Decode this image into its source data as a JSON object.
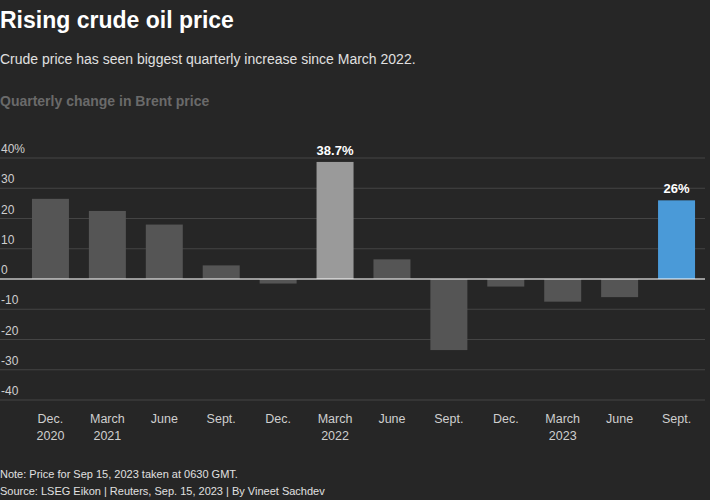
{
  "chart_data": {
    "type": "bar",
    "title": "Rising crude oil price",
    "subtitle": "Crude price has seen biggest quarterly increase since March 2022.",
    "y_label": "Quarterly change in Brent price",
    "categories": [
      "Dec.\n2020",
      "March\n2021",
      "June",
      "Sept.",
      "Dec.",
      "March\n2022",
      "June",
      "Sept.",
      "Dec.",
      "March\n2023",
      "June",
      "Sept."
    ],
    "values": [
      26.5,
      22.5,
      18,
      4.5,
      -1.5,
      38.7,
      6.5,
      -23.5,
      -2.5,
      -7.5,
      -6,
      26
    ],
    "value_labels": [
      null,
      null,
      null,
      null,
      null,
      "38.7%",
      null,
      null,
      null,
      null,
      null,
      "26%"
    ],
    "data_labels": true,
    "colors": [
      "#555555",
      "#555555",
      "#555555",
      "#555555",
      "#555555",
      "#9a9a9a",
      "#555555",
      "#555555",
      "#555555",
      "#555555",
      "#555555",
      "#4a9ad8"
    ],
    "ylim": [
      -40,
      40
    ],
    "yticks": [
      {
        "value": 40,
        "label": "40%"
      },
      30,
      20,
      10,
      0,
      -10,
      -20,
      -30,
      -40
    ],
    "grid": true,
    "note": "Note: Price for Sep 15, 2023 taken at 0630 GMT.",
    "source": "Source: LSEG Eikon | Reuters, Sep. 15, 2023 | By Vineet Sachdev"
  }
}
